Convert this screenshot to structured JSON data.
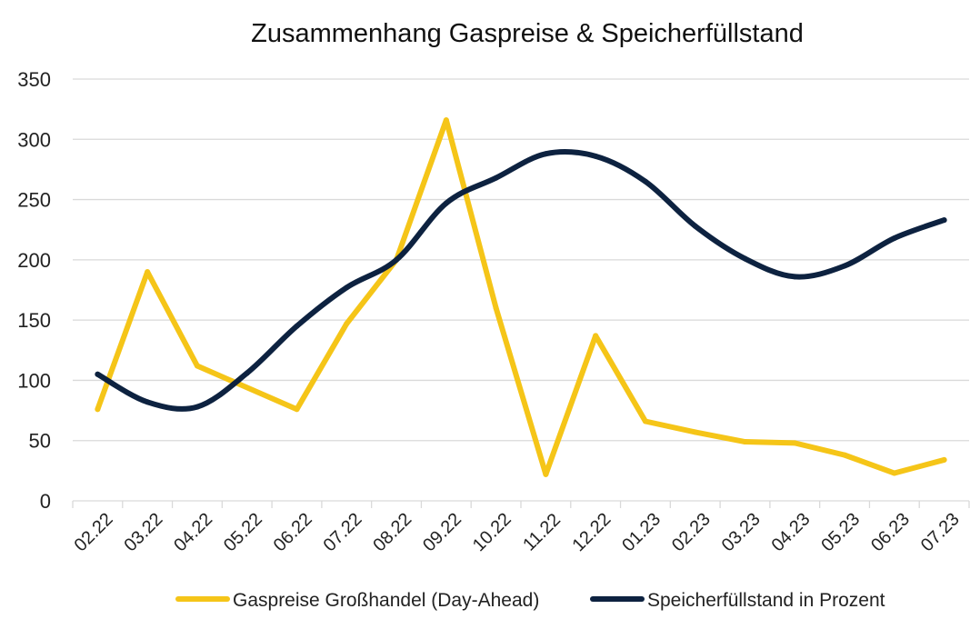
{
  "chart_data": {
    "type": "line",
    "title": "Zusammenhang Gaspreise & Speicherfüllstand",
    "xlabel": "",
    "ylabel": "",
    "ylim": [
      0,
      350
    ],
    "yticks": [
      0,
      50,
      100,
      150,
      200,
      250,
      300,
      350
    ],
    "grid": true,
    "legend_position": "bottom",
    "x_categories": [
      "02.22",
      "03.22",
      "04.22",
      "05.22",
      "06.22",
      "07.22",
      "08.22",
      "09.22",
      "10.22",
      "11.22",
      "12.22",
      "01.23",
      "02.23",
      "03.23",
      "04.23",
      "05.23",
      "06.23",
      "07.23"
    ],
    "series": [
      {
        "name": "Gaspreise Großhandel (Day-Ahead)",
        "color": "#f5c518",
        "smooth": false,
        "points": [
          {
            "x": 0.5,
            "y": 76
          },
          {
            "x": 1.5,
            "y": 190
          },
          {
            "x": 2.5,
            "y": 112
          },
          {
            "x": 4.5,
            "y": 76
          },
          {
            "x": 5.5,
            "y": 147
          },
          {
            "x": 6.5,
            "y": 200
          },
          {
            "x": 7.5,
            "y": 316
          },
          {
            "x": 8.5,
            "y": 160
          },
          {
            "x": 9.5,
            "y": 22
          },
          {
            "x": 10.5,
            "y": 137
          },
          {
            "x": 11.5,
            "y": 66
          },
          {
            "x": 12.5,
            "y": 57
          },
          {
            "x": 13.5,
            "y": 49
          },
          {
            "x": 14.5,
            "y": 48
          },
          {
            "x": 15.5,
            "y": 38
          },
          {
            "x": 16.5,
            "y": 23
          },
          {
            "x": 17.5,
            "y": 34
          }
        ]
      },
      {
        "name": "Speicherfüllstand in Prozent",
        "color": "#0d2240",
        "smooth": true,
        "points": [
          {
            "x": 0.5,
            "y": 105
          },
          {
            "x": 1.5,
            "y": 82
          },
          {
            "x": 2.5,
            "y": 78
          },
          {
            "x": 3.5,
            "y": 106
          },
          {
            "x": 4.5,
            "y": 145
          },
          {
            "x": 5.5,
            "y": 177
          },
          {
            "x": 6.5,
            "y": 200
          },
          {
            "x": 7.5,
            "y": 247
          },
          {
            "x": 8.5,
            "y": 268
          },
          {
            "x": 9.5,
            "y": 288
          },
          {
            "x": 10.5,
            "y": 286
          },
          {
            "x": 11.5,
            "y": 265
          },
          {
            "x": 12.5,
            "y": 228
          },
          {
            "x": 13.5,
            "y": 201
          },
          {
            "x": 14.5,
            "y": 186
          },
          {
            "x": 15.5,
            "y": 195
          },
          {
            "x": 16.5,
            "y": 218
          },
          {
            "x": 17.5,
            "y": 233
          }
        ]
      }
    ]
  }
}
